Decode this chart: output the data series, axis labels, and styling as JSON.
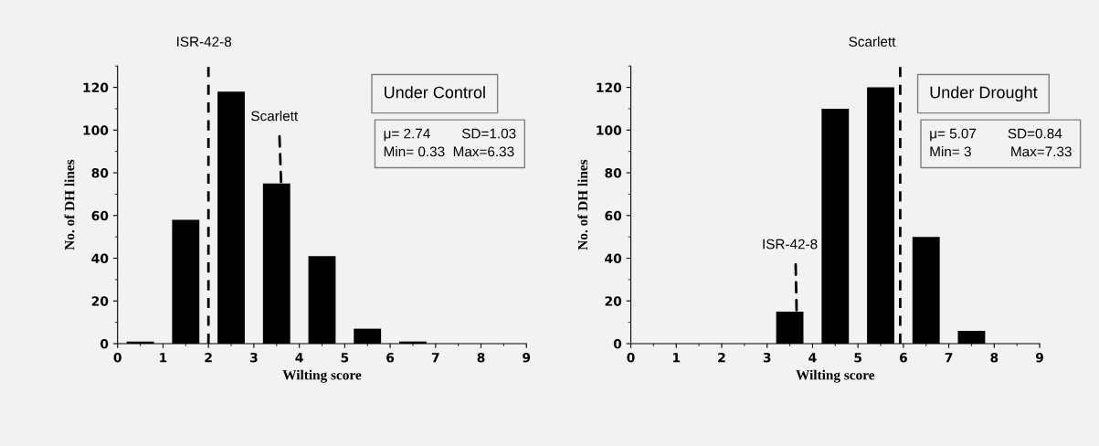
{
  "chart_data": [
    {
      "type": "histogram",
      "xlabel": "Wilting score",
      "ylabel": "No. of DH lines",
      "bins": [
        0,
        1,
        2,
        3,
        4,
        5,
        6,
        7,
        8,
        9
      ],
      "values": [
        1,
        58,
        118,
        75,
        41,
        7,
        1,
        0,
        0
      ],
      "color": "#000000",
      "xlim": [
        0,
        9
      ],
      "ylim": [
        0,
        130
      ],
      "xticks": [
        0,
        1,
        2,
        3,
        4,
        5,
        6,
        7,
        8,
        9
      ],
      "yticks": [
        0,
        20,
        40,
        60,
        80,
        100,
        120
      ],
      "grid": false,
      "ref_lines": [
        {
          "axis": "x",
          "value": 2,
          "label": "ISR-42-8",
          "line_style": "dashed",
          "color": "#000000"
        }
      ],
      "annotations": [
        {
          "text": "Scarlett",
          "x": 3.6,
          "y": 75
        },
        "Under Control",
        "μ= 2.74        SD=1.03\nMin= 0.33  Max=6.33"
      ]
    },
    {
      "type": "histogram",
      "xlabel": "Wilting score",
      "ylabel": "No. of DH lines",
      "bins": [
        0,
        1,
        2,
        3,
        4,
        5,
        6,
        7,
        8,
        9
      ],
      "values": [
        0,
        0,
        0,
        15,
        110,
        120,
        50,
        6,
        0
      ],
      "color": "#000000",
      "xlim": [
        0,
        9
      ],
      "ylim": [
        0,
        130
      ],
      "xticks": [
        0,
        1,
        2,
        3,
        4,
        5,
        6,
        7,
        8,
        9
      ],
      "yticks": [
        0,
        20,
        40,
        60,
        80,
        100,
        120
      ],
      "grid": false,
      "ref_lines": [
        {
          "axis": "x",
          "value": 5.93,
          "label": "Scarlett",
          "line_style": "dashed",
          "color": "#000000"
        }
      ],
      "annotations": [
        {
          "text": "ISR-42-8",
          "x": 3.65,
          "y": 15
        },
        "Under Drought",
        "μ= 5.07        SD=0.84\nMin= 3          Max=7.33"
      ]
    }
  ]
}
